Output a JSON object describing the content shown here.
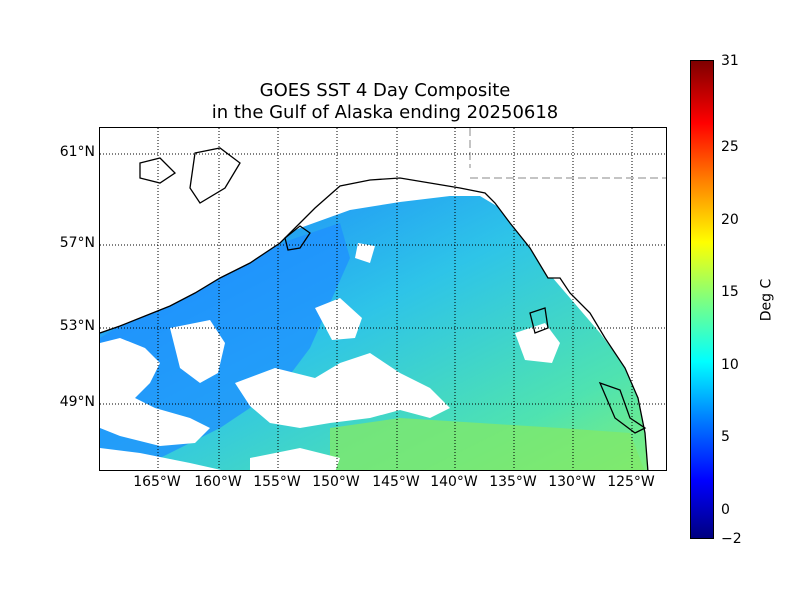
{
  "title": {
    "line1": "GOES SST 4 Day Composite",
    "line2": "in the Gulf of Alaska ending 20250618"
  },
  "map": {
    "latitude_labels": [
      "61°N",
      "57°N",
      "53°N",
      "49°N"
    ],
    "longitude_labels": [
      "165°W",
      "160°W",
      "155°W",
      "150°W",
      "145°W",
      "140°W",
      "135°W",
      "130°W",
      "125°W"
    ],
    "water_colors": {
      "cool": "#1e90ff",
      "mid": "#2ec4e8",
      "warm": "#5fe8a0",
      "coastal_warm": "#9be34a"
    },
    "land_color": "#ffffff",
    "coastline_color": "#000000",
    "grid_style": "dotted"
  },
  "colorbar": {
    "label": "Deg C",
    "ticks": [
      "31",
      "25",
      "20",
      "15",
      "10",
      "5",
      "0",
      "−2"
    ],
    "min": -2,
    "max": 31,
    "colormap": "jet"
  }
}
